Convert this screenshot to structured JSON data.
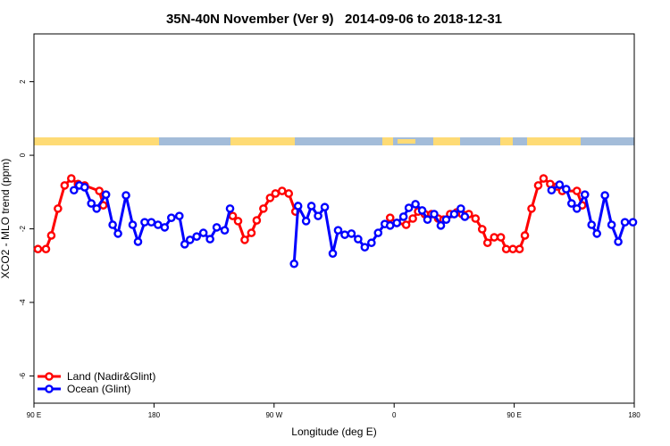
{
  "chart_data": {
    "type": "line",
    "title": "35N-40N November (Ver 9)   2014-09-06 to 2018-12-31",
    "x_label": "Longitude (deg E)",
    "y_label": "XCO2 - MLO trend (ppm)",
    "xlim": [
      90,
      540
    ],
    "xticks": [
      {
        "value": 90,
        "label": "90 E"
      },
      180,
      {
        "value": 270,
        "label": "90 W"
      },
      {
        "value": 360,
        "label": "0"
      },
      {
        "value": 450,
        "label": "90 E"
      },
      {
        "value": 540,
        "label": "180"
      }
    ],
    "ylim": [
      -6.74,
      3.3
    ],
    "yticks": [
      2,
      0,
      -2,
      -4,
      -6
    ],
    "legend": "bottom-left",
    "series": [
      {
        "name": "Land (Nadir&Glint)",
        "color": "#ff0000",
        "x": [
          93,
          99,
          103,
          108,
          113,
          118,
          123,
          128,
          139,
          142,
          null,
          239,
          243,
          248,
          253,
          257,
          262,
          267,
          271,
          276,
          281,
          286,
          null,
          357,
          362,
          369,
          374,
          378,
          383,
          388,
          393,
          397,
          402,
          407,
          411,
          416,
          421,
          426,
          430,
          435,
          440,
          444,
          449,
          454,
          458,
          463,
          468,
          472,
          477,
          482,
          486,
          497,
          501
        ],
        "values": [
          -2.55,
          -2.55,
          -2.18,
          -1.45,
          -0.82,
          -0.63,
          -0.78,
          -0.82,
          -0.97,
          -1.36,
          null,
          -1.65,
          -1.79,
          -2.3,
          -2.11,
          -1.77,
          -1.45,
          -1.16,
          -1.04,
          -0.97,
          -1.04,
          -1.53,
          null,
          -1.7,
          -1.84,
          -1.89,
          -1.72,
          -1.53,
          -1.6,
          -1.6,
          -1.72,
          -1.75,
          -1.6,
          -1.55,
          -1.6,
          -1.6,
          -1.72,
          -2.01,
          -2.38,
          -2.23,
          -2.23,
          -2.55,
          -2.55,
          -2.55,
          -2.18,
          -1.45,
          -0.82,
          -0.63,
          -0.78,
          -0.85,
          -0.97,
          -0.97,
          -1.36
        ]
      },
      {
        "name": "Ocean (Glint)",
        "color": "#0000ff",
        "x": [
          120,
          124,
          128,
          133,
          137,
          144,
          149,
          153,
          159,
          164,
          168,
          173,
          178,
          183,
          188,
          193,
          199,
          203,
          207,
          212,
          217,
          222,
          227,
          233,
          237,
          null,
          285,
          288,
          294,
          298,
          303,
          308,
          314,
          318,
          323,
          328,
          333,
          338,
          343,
          348,
          353,
          357,
          362,
          367,
          371,
          376,
          381,
          385,
          390,
          395,
          399,
          405,
          410,
          413,
          null,
          478,
          484,
          489,
          493,
          497,
          503,
          508,
          512,
          518,
          523,
          528,
          533,
          539
        ],
        "values": [
          -0.95,
          -0.82,
          -0.87,
          -1.31,
          -1.45,
          -1.07,
          -1.89,
          -2.13,
          -1.09,
          -1.89,
          -2.35,
          -1.82,
          -1.82,
          -1.89,
          -1.96,
          -1.7,
          -1.65,
          -2.42,
          -2.3,
          -2.21,
          -2.11,
          -2.28,
          -1.96,
          -2.04,
          -1.45,
          null,
          -2.95,
          -1.38,
          -1.79,
          -1.38,
          -1.65,
          -1.41,
          -2.67,
          -2.04,
          -2.16,
          -2.13,
          -2.28,
          -2.5,
          -2.38,
          -2.11,
          -1.87,
          -1.91,
          -1.84,
          -1.67,
          -1.43,
          -1.33,
          -1.5,
          -1.75,
          -1.6,
          -1.91,
          -1.75,
          -1.6,
          -1.45,
          -1.67,
          null,
          -0.95,
          -0.8,
          -0.92,
          -1.31,
          -1.45,
          -1.07,
          -1.89,
          -2.13,
          -1.09,
          -1.89,
          -2.35,
          -1.82,
          -1.82
        ]
      }
    ]
  }
}
